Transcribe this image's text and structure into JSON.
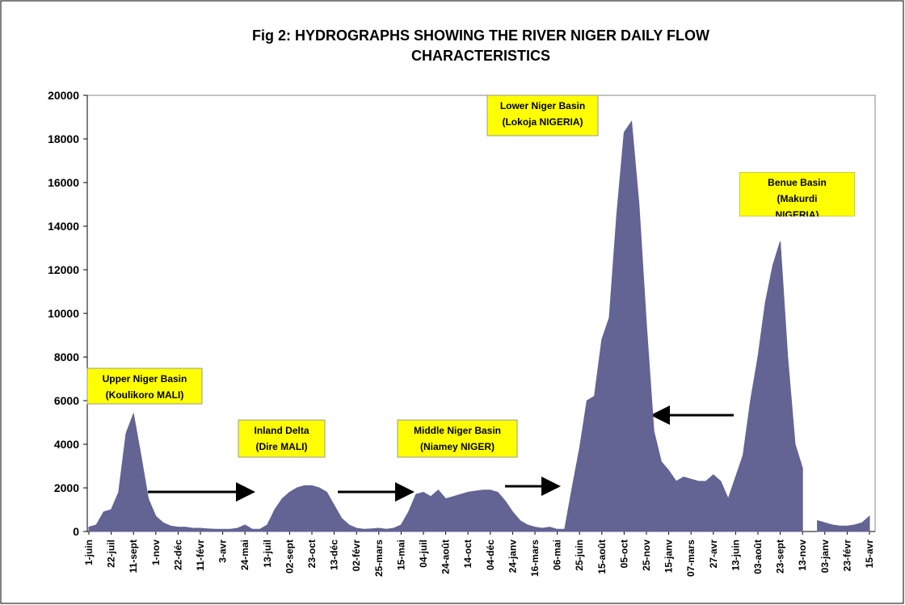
{
  "chart_data": {
    "type": "area",
    "title": [
      "Fig 2: HYDROGRAPHS SHOWING THE RIVER NIGER DAILY FLOW",
      "CHARACTERISTICS"
    ],
    "categories": [
      "1-juin",
      null,
      null,
      "22-juil",
      null,
      null,
      "11-sept",
      null,
      null,
      "1-nov",
      null,
      null,
      "22-déc",
      null,
      null,
      "11-févr",
      null,
      null,
      "3-avr",
      null,
      null,
      "24-mai",
      null,
      null,
      "13-juil",
      null,
      null,
      "02-sept",
      null,
      null,
      "23-oct",
      null,
      null,
      "13-déc",
      null,
      null,
      "02-févr",
      null,
      null,
      "25-mars",
      null,
      null,
      "15-mai",
      null,
      null,
      "04-juil",
      null,
      null,
      "24-août",
      null,
      null,
      "14-oct",
      null,
      null,
      "04-déc",
      null,
      null,
      "24-janv",
      null,
      null,
      "16-mars",
      null,
      null,
      "06-mai",
      null,
      null,
      "25-juin",
      null,
      null,
      "15-août",
      null,
      null,
      "05-oct",
      null,
      null,
      "25-nov",
      null,
      null,
      "15-janv",
      null,
      null,
      "07-mars",
      null,
      null,
      "27-avr",
      null,
      null,
      "13-juin",
      null,
      null,
      "03-août",
      null,
      null,
      "23-sept",
      null,
      null,
      "13-nov",
      null,
      null,
      "03-janv",
      null,
      null,
      "23-févr",
      null,
      null,
      "15-avr"
    ],
    "values": [
      200,
      300,
      900,
      1000,
      1800,
      4500,
      5400,
      3500,
      1500,
      700,
      400,
      250,
      200,
      200,
      150,
      150,
      120,
      100,
      100,
      100,
      150,
      300,
      100,
      100,
      300,
      1000,
      1500,
      1800,
      2000,
      2100,
      2100,
      2000,
      1800,
      1200,
      600,
      300,
      150,
      100,
      120,
      150,
      100,
      150,
      300,
      900,
      1700,
      1800,
      1600,
      1900,
      1500,
      1600,
      1700,
      1800,
      1850,
      1900,
      1900,
      1800,
      1400,
      900,
      500,
      300,
      200,
      150,
      200,
      100,
      100,
      2000,
      3800,
      6000,
      6200,
      8800,
      9800,
      14500,
      18300,
      18800,
      15000,
      9500,
      4600,
      3200,
      2800,
      2300,
      2500,
      2400,
      2300,
      2300,
      2600,
      2300,
      1500,
      2500,
      3500,
      6000,
      8000,
      10500,
      12200,
      13300,
      8000,
      4000,
      2900,
      null,
      500,
      400,
      300,
      250,
      250,
      300,
      400,
      700
    ],
    "color": "#636394",
    "ylim": [
      0,
      20000
    ],
    "yticks": [
      0,
      2000,
      4000,
      6000,
      8000,
      10000,
      12000,
      14000,
      16000,
      18000,
      20000
    ],
    "annotations": [
      [
        "Upper Niger Basin",
        "(Koulikoro  MALI)"
      ],
      [
        "Inland Delta",
        "(Dire MALI)"
      ],
      [
        "Middle Niger Basin",
        "(Niamey NIGER)"
      ],
      [
        "Lower Niger Basin",
        "(Lokoja NIGERIA)"
      ],
      [
        "Benue Basin",
        "(Makurdi",
        "NIGERIA)"
      ]
    ]
  }
}
